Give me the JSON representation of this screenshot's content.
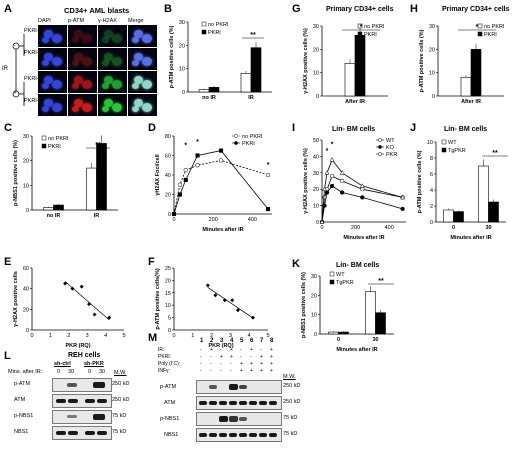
{
  "panels": {
    "A": {
      "label": "A",
      "title": "CD34+ AML blasts",
      "columns": [
        "DAPI",
        "p-ATM",
        "γ-H2AX",
        "Merge"
      ],
      "rows": [
        "PKRI-",
        "PKRI+",
        "PKRI-",
        "PKRI+"
      ],
      "side_label": "IR",
      "minus": "-",
      "plus": "+"
    },
    "B": {
      "label": "B",
      "ylabel": "p-ATM positive cells (%)",
      "legend": [
        "no PKRI",
        "PKRI"
      ],
      "sig": "**"
    },
    "C": {
      "label": "C",
      "ylabel": "p-NBS1 positive cells (%)",
      "legend": [
        "no PKRI",
        "PKRI"
      ],
      "sig": "**"
    },
    "D": {
      "label": "D",
      "ylabel": "γH2AX Foci/cell",
      "xlabel": "Minutes after IR",
      "legend": [
        "no PKRI",
        "PKRI"
      ],
      "sig": "*"
    },
    "E": {
      "label": "E",
      "ylabel": "γ-H2AX positive cells",
      "xlabel": "PKR (RQ)"
    },
    "F": {
      "label": "F",
      "ylabel": "p-ATM positive cells(%)",
      "xlabel": "PKR (RQ)"
    },
    "G": {
      "label": "G",
      "title": "Primary CD34+ cells",
      "ylabel": "γ-H2AX positive cells (%)",
      "legend": [
        "no PKRI",
        "PKRI"
      ],
      "sig": "*"
    },
    "H": {
      "label": "H",
      "title": "Primary CD34+ cells",
      "ylabel": "p-ATM positive cells (%)",
      "legend": [
        "no PKRI",
        "PKRI"
      ],
      "sig": "*"
    },
    "I": {
      "label": "I",
      "title": "Lin- BM cells",
      "ylabel": "γ-H2AX positive cells (%)",
      "xlabel": "Minutes after IR",
      "legend": [
        "WT",
        "KO",
        "PKR"
      ],
      "sig": "*"
    },
    "J": {
      "label": "J",
      "title": "Lin- BM cells",
      "ylabel": "p-ATM positive cells (%)",
      "xlabel": "Minutes after IR",
      "legend": [
        "WT",
        "TgPKR"
      ],
      "sig": "**"
    },
    "K": {
      "label": "K",
      "title": "Lin- BM cells",
      "ylabel": "p-NBS1 positive cells (%)",
      "xlabel": "Minutes after IR",
      "legend": [
        "WT",
        "TgPKR"
      ],
      "sig": "**"
    },
    "L": {
      "label": "L",
      "title": "REH cells",
      "groups": [
        "sh-ctrl",
        "sh-PKR"
      ],
      "mins_label": "Mins. after IR:",
      "times": [
        "0",
        "30",
        "0",
        "30"
      ],
      "rows": [
        "p-ATM",
        "ATM",
        "p-NBS1",
        "NBS1"
      ],
      "mw_label": "M.W.",
      "mw": [
        "250 kD",
        "250 kD",
        "75 kD",
        "75 kD"
      ]
    },
    "M": {
      "label": "M",
      "lanes": [
        "1",
        "2",
        "3",
        "4",
        "5",
        "6",
        "7",
        "8"
      ],
      "conditions": [
        {
          "name": "IR:",
          "marks": [
            "-",
            "+",
            "-",
            "+",
            "-",
            "+",
            "-",
            "+"
          ]
        },
        {
          "name": "PKRI:",
          "marks": [
            "-",
            "-",
            "+",
            "+",
            "-",
            "-",
            "+",
            "+"
          ]
        },
        {
          "name": "Poly (I:C):",
          "marks": [
            "-",
            "-",
            "-",
            "-",
            "+",
            "+",
            "+",
            "+"
          ]
        },
        {
          "name": "INFγ:",
          "marks": [
            "-",
            "-",
            "-",
            "-",
            "+",
            "+",
            "+",
            "+"
          ]
        }
      ],
      "rows": [
        "p-ATM",
        "ATM",
        "p-NBS1",
        "NBS1"
      ],
      "mw_label": "M.W.",
      "mw": [
        "250 kD",
        "250 kD",
        "75 kD",
        "75 kD"
      ]
    }
  },
  "chart_data": [
    {
      "panel": "B",
      "type": "bar",
      "categories": [
        "no IR",
        "IR"
      ],
      "series": [
        {
          "name": "no PKRI",
          "values": [
            1,
            8
          ]
        },
        {
          "name": "PKRI",
          "values": [
            2,
            19
          ]
        }
      ],
      "ylim": [
        0,
        30
      ],
      "ticks": [
        "0",
        "10",
        "20",
        "30"
      ]
    },
    {
      "panel": "C",
      "type": "bar",
      "categories": [
        "no IR",
        "IR"
      ],
      "series": [
        {
          "name": "no PKRI",
          "values": [
            1,
            17
          ]
        },
        {
          "name": "PKRI",
          "values": [
            2,
            27
          ]
        }
      ],
      "ylim": [
        0,
        30
      ],
      "ticks": [
        "0",
        "10",
        "20",
        "30"
      ]
    },
    {
      "panel": "D",
      "type": "line",
      "x": [
        0,
        30,
        60,
        120,
        240,
        480
      ],
      "series": [
        {
          "name": "no PKRI",
          "values": [
            0,
            30,
            45,
            50,
            55,
            40
          ]
        },
        {
          "name": "PKRI",
          "values": [
            0,
            20,
            35,
            60,
            65,
            5
          ]
        }
      ],
      "ylim": [
        0,
        80
      ],
      "ticks": [
        "0",
        "20",
        "40",
        "60",
        "80"
      ],
      "xticks": [
        "0",
        "200",
        "400"
      ]
    },
    {
      "panel": "E",
      "type": "scatter",
      "x": [
        1.8,
        2.2,
        2.7,
        3.1,
        3.4,
        4.2
      ],
      "y": [
        45,
        40,
        42,
        25,
        15,
        12
      ],
      "xlim": [
        0,
        5
      ],
      "ylim": [
        0,
        60
      ],
      "ticks": [
        "0",
        "20",
        "40",
        "60"
      ],
      "xticks": [
        "0",
        "1",
        "2",
        "3",
        "4",
        "5"
      ]
    },
    {
      "panel": "F",
      "type": "scatter",
      "x": [
        1.8,
        2.2,
        2.7,
        3.1,
        3.4,
        4.2
      ],
      "y": [
        18,
        14,
        12,
        12,
        8,
        5
      ],
      "xlim": [
        0,
        5
      ],
      "ylim": [
        0,
        25
      ],
      "ticks": [
        "0",
        "5",
        "10",
        "15",
        "20",
        "25"
      ],
      "xticks": [
        "0",
        "1",
        "2",
        "3",
        "4",
        "5"
      ]
    },
    {
      "panel": "G",
      "type": "bar",
      "categories": [
        "After IR"
      ],
      "series": [
        {
          "name": "no PKRI",
          "values": [
            14
          ]
        },
        {
          "name": "PKRI",
          "values": [
            26
          ]
        }
      ],
      "ylim": [
        0,
        30
      ],
      "ticks": [
        "0",
        "10",
        "20",
        "30"
      ]
    },
    {
      "panel": "H",
      "type": "bar",
      "categories": [
        "After IR"
      ],
      "series": [
        {
          "name": "no PKRI",
          "values": [
            8
          ]
        },
        {
          "name": "PKRI",
          "values": [
            20
          ]
        }
      ],
      "ylim": [
        0,
        30
      ],
      "ticks": [
        "0",
        "10",
        "20",
        "30"
      ]
    },
    {
      "panel": "I",
      "type": "line",
      "x": [
        0,
        15,
        30,
        60,
        120,
        240,
        480
      ],
      "series": [
        {
          "name": "WT",
          "values": [
            0,
            15,
            20,
            28,
            25,
            20,
            15
          ]
        },
        {
          "name": "KO",
          "values": [
            0,
            10,
            18,
            22,
            18,
            15,
            8
          ]
        },
        {
          "name": "PKR",
          "values": [
            0,
            20,
            30,
            38,
            30,
            22,
            15
          ]
        }
      ],
      "ylim": [
        0,
        50
      ],
      "ticks": [
        "0",
        "10",
        "20",
        "30",
        "40",
        "50"
      ],
      "xticks": [
        "0",
        "200",
        "400"
      ]
    },
    {
      "panel": "J",
      "type": "bar",
      "categories": [
        "0",
        "30"
      ],
      "series": [
        {
          "name": "WT",
          "values": [
            1.5,
            7
          ]
        },
        {
          "name": "TgPKR",
          "values": [
            1.3,
            2.5
          ]
        }
      ],
      "ylim": [
        0,
        10
      ],
      "ticks": [
        "0",
        "2",
        "4",
        "6",
        "8",
        "10"
      ]
    },
    {
      "panel": "K",
      "type": "bar",
      "categories": [
        "0",
        "30"
      ],
      "series": [
        {
          "name": "WT",
          "values": [
            1,
            22
          ]
        },
        {
          "name": "TgPKR",
          "values": [
            1,
            11
          ]
        }
      ],
      "ylim": [
        0,
        30
      ],
      "ticks": [
        "0",
        "10",
        "20",
        "30"
      ]
    }
  ]
}
